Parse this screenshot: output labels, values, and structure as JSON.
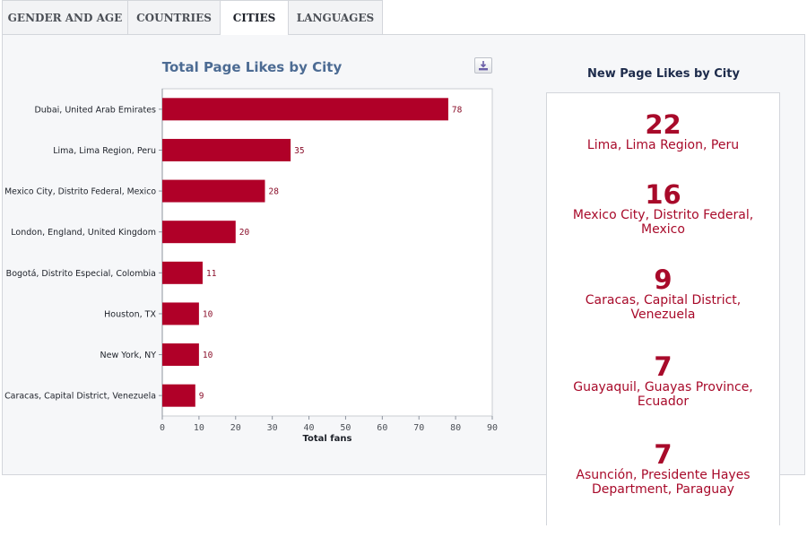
{
  "tabs": [
    {
      "label": "GENDER AND AGE",
      "active": false
    },
    {
      "label": "COUNTRIES",
      "active": false
    },
    {
      "label": "CITIES",
      "active": true
    },
    {
      "label": "LANGUAGES",
      "active": false
    }
  ],
  "download_icon": "download-icon",
  "colors": {
    "bar": "#b00028",
    "label": "#8a0f2a",
    "big_number": "#a80a2a",
    "title": "#4c6b93"
  },
  "chart_data": {
    "type": "bar",
    "orientation": "horizontal",
    "title": "Total Page Likes by City",
    "xlabel": "Total fans",
    "ylabel": "",
    "xlim": [
      0,
      90
    ],
    "xticks": [
      0,
      10,
      20,
      30,
      40,
      50,
      60,
      70,
      80,
      90
    ],
    "grid": false,
    "categories": [
      "Dubai, United Arab Emirates",
      "Lima, Lima Region, Peru",
      "Mexico City, Distrito Federal, Mexico",
      "London, England, United Kingdom",
      "Bogotá, Distrito Especial, Colombia",
      "Houston, TX",
      "New York, NY",
      "Caracas, Capital District, Venezuela"
    ],
    "values": [
      78,
      35,
      28,
      20,
      11,
      10,
      10,
      9
    ]
  },
  "new_likes": {
    "title": "New Page Likes by City",
    "items": [
      {
        "count": "22",
        "city": "Lima, Lima Region, Peru"
      },
      {
        "count": "16",
        "city": "Mexico City, Distrito Federal, Mexico"
      },
      {
        "count": "9",
        "city": "Caracas, Capital District, Venezuela"
      },
      {
        "count": "7",
        "city": "Guayaquil, Guayas Province, Ecuador"
      },
      {
        "count": "7",
        "city": "Asunción, Presidente Hayes Department, Paraguay"
      }
    ]
  }
}
